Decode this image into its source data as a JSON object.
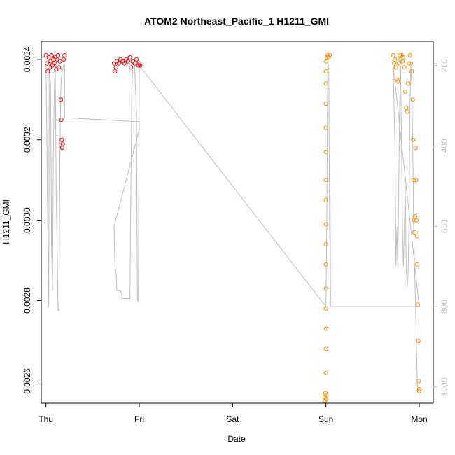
{
  "chart_data": {
    "type": "scatter",
    "title": "ATOM2 Northeast_Pacific_1 H1211_GMI",
    "xlabel": "Date",
    "ylabel": "H1211_GMI",
    "x_ticks": [
      "Thu",
      "Fri",
      "Sat",
      "Sun",
      "Mon"
    ],
    "x_range_days": [
      -0.05,
      4.15
    ],
    "ylim": [
      0.002545,
      0.003445
    ],
    "y_ticks": [
      {
        "value": 0.0026,
        "label": "0.0026"
      },
      {
        "value": 0.0028,
        "label": "0.0028"
      },
      {
        "value": 0.003,
        "label": "0.0030"
      },
      {
        "value": 0.0032,
        "label": "0.0032"
      },
      {
        "value": 0.0034,
        "label": "0.0034"
      }
    ],
    "y2lim": [
      1040,
      140
    ],
    "y2_ticks": [
      {
        "value": 200,
        "label": "200"
      },
      {
        "value": 400,
        "label": "400"
      },
      {
        "value": 600,
        "label": "600"
      },
      {
        "value": 800,
        "label": "800"
      },
      {
        "value": 1000,
        "label": "1000"
      }
    ],
    "colors": {
      "red": "#ff0000",
      "orange": "#ff8c00",
      "line": "#bebebe"
    },
    "series": [
      {
        "color": "red",
        "marker": "circle-open",
        "points": [
          [
            0.0,
            0.00341
          ],
          [
            0.01,
            0.00339
          ],
          [
            0.02,
            0.00337
          ],
          [
            0.03,
            0.003405
          ],
          [
            0.04,
            0.00338
          ],
          [
            0.05,
            0.003395
          ],
          [
            0.06,
            0.00341
          ],
          [
            0.07,
            0.003385
          ],
          [
            0.08,
            0.0034
          ],
          [
            0.09,
            0.00339
          ],
          [
            0.1,
            0.003405
          ],
          [
            0.11,
            0.003375
          ],
          [
            0.12,
            0.0034
          ],
          [
            0.13,
            0.00341
          ],
          [
            0.14,
            0.00338
          ],
          [
            0.15,
            0.003395
          ],
          [
            0.16,
            0.0033
          ],
          [
            0.165,
            0.00325
          ],
          [
            0.17,
            0.0032
          ],
          [
            0.175,
            0.00318
          ],
          [
            0.18,
            0.00319
          ],
          [
            0.19,
            0.0034
          ],
          [
            0.2,
            0.00341
          ],
          [
            0.73,
            0.00339
          ],
          [
            0.74,
            0.00337
          ],
          [
            0.75,
            0.00338
          ],
          [
            0.76,
            0.003395
          ],
          [
            0.78,
            0.00339
          ],
          [
            0.8,
            0.0034
          ],
          [
            0.82,
            0.003395
          ],
          [
            0.84,
            0.00339
          ],
          [
            0.86,
            0.0034
          ],
          [
            0.88,
            0.003395
          ],
          [
            0.9,
            0.003405
          ],
          [
            0.91,
            0.00338
          ],
          [
            0.93,
            0.003395
          ],
          [
            0.95,
            0.00339
          ],
          [
            0.97,
            0.0034
          ],
          [
            0.99,
            0.003385
          ],
          [
            1.0,
            0.00339
          ],
          [
            1.01,
            0.003385
          ]
        ]
      },
      {
        "color": "orange",
        "marker": "circle-open",
        "points": [
          [
            2.99,
            0.00255
          ],
          [
            2.99,
            0.00256
          ],
          [
            2.995,
            0.00257
          ],
          [
            3.0,
            0.002555
          ],
          [
            3.005,
            0.002565
          ],
          [
            3.0,
            0.00262
          ],
          [
            3.0,
            0.00268
          ],
          [
            3.0,
            0.00273
          ],
          [
            3.0,
            0.00278
          ],
          [
            3.0,
            0.00283
          ],
          [
            3.0,
            0.00289
          ],
          [
            3.0,
            0.00294
          ],
          [
            3.0,
            0.00299
          ],
          [
            3.0,
            0.00305
          ],
          [
            3.0,
            0.0031
          ],
          [
            3.0,
            0.00317
          ],
          [
            3.0,
            0.00323
          ],
          [
            3.0,
            0.00329
          ],
          [
            3.0,
            0.00334
          ],
          [
            3.0,
            0.00337
          ],
          [
            3.005,
            0.003395
          ],
          [
            3.01,
            0.003405
          ],
          [
            3.02,
            0.00341
          ],
          [
            3.03,
            0.003405
          ],
          [
            3.04,
            0.00341
          ],
          [
            3.72,
            0.00341
          ],
          [
            3.73,
            0.00339
          ],
          [
            3.74,
            0.0034
          ],
          [
            3.75,
            0.00338
          ],
          [
            3.76,
            0.00335
          ],
          [
            3.77,
            0.003345
          ],
          [
            3.78,
            0.00339
          ],
          [
            3.79,
            0.00341
          ],
          [
            3.8,
            0.0034
          ],
          [
            3.81,
            0.00341
          ],
          [
            3.82,
            0.003395
          ],
          [
            3.83,
            0.003405
          ],
          [
            3.84,
            0.00338
          ],
          [
            3.85,
            0.00332
          ],
          [
            3.86,
            0.00328
          ],
          [
            3.87,
            0.00327
          ],
          [
            3.88,
            0.00334
          ],
          [
            3.89,
            0.00339
          ],
          [
            3.9,
            0.00341
          ],
          [
            3.91,
            0.00339
          ],
          [
            3.92,
            0.00337
          ],
          [
            3.93,
            0.0033
          ],
          [
            3.935,
            0.0032
          ],
          [
            3.94,
            0.0031
          ],
          [
            3.945,
            0.003
          ],
          [
            3.95,
            0.00297
          ],
          [
            3.955,
            0.00301
          ],
          [
            3.96,
            0.00318
          ],
          [
            3.965,
            0.0031
          ],
          [
            3.97,
            0.003
          ],
          [
            3.975,
            0.00296
          ],
          [
            3.98,
            0.00289
          ],
          [
            3.985,
            0.00279
          ],
          [
            3.99,
            0.0027
          ],
          [
            3.995,
            0.0026
          ],
          [
            4.0,
            0.00258
          ],
          [
            4.0,
            0.002575
          ]
        ]
      }
    ],
    "line_series": {
      "color": "line",
      "axis": "right",
      "points": [
        [
          0.0,
          200
        ],
        [
          0.01,
          390
        ],
        [
          0.02,
          600
        ],
        [
          0.03,
          800
        ],
        [
          0.035,
          200
        ],
        [
          0.05,
          250
        ],
        [
          0.06,
          650
        ],
        [
          0.07,
          760
        ],
        [
          0.08,
          400
        ],
        [
          0.09,
          250
        ],
        [
          0.1,
          200
        ],
        [
          0.11,
          520
        ],
        [
          0.12,
          650
        ],
        [
          0.13,
          810
        ],
        [
          0.14,
          810
        ],
        [
          0.15,
          400
        ],
        [
          0.16,
          250
        ],
        [
          0.17,
          220
        ],
        [
          0.18,
          210
        ],
        [
          0.19,
          200
        ],
        [
          0.2,
          200
        ],
        [
          0.2,
          330
        ],
        [
          1.0,
          340
        ],
        [
          1.0,
          360
        ],
        [
          0.73,
          600
        ],
        [
          0.74,
          700
        ],
        [
          0.75,
          710
        ],
        [
          0.76,
          760
        ],
        [
          0.8,
          760
        ],
        [
          0.82,
          780
        ],
        [
          0.83,
          780
        ],
        [
          0.85,
          780
        ],
        [
          0.88,
          780
        ],
        [
          0.9,
          780
        ],
        [
          0.91,
          500
        ],
        [
          0.92,
          270
        ],
        [
          0.93,
          200
        ],
        [
          0.95,
          200
        ],
        [
          0.97,
          320
        ],
        [
          0.98,
          780
        ],
        [
          0.99,
          790
        ],
        [
          1.0,
          200
        ],
        [
          3.0,
          800
        ],
        [
          3.01,
          560
        ],
        [
          3.02,
          200
        ],
        [
          3.03,
          200
        ],
        [
          3.035,
          390
        ],
        [
          3.04,
          630
        ],
        [
          3.045,
          520
        ],
        [
          3.05,
          800
        ],
        [
          3.1,
          800
        ],
        [
          3.5,
          800
        ],
        [
          3.9,
          800
        ],
        [
          4.0,
          800
        ],
        [
          3.72,
          200
        ],
        [
          3.73,
          300
        ],
        [
          3.74,
          400
        ],
        [
          3.75,
          700
        ],
        [
          3.76,
          600
        ],
        [
          3.77,
          700
        ],
        [
          3.78,
          500
        ],
        [
          3.79,
          300
        ],
        [
          3.8,
          200
        ],
        [
          3.81,
          400
        ],
        [
          3.82,
          600
        ],
        [
          3.83,
          700
        ],
        [
          3.84,
          600
        ],
        [
          3.85,
          500
        ],
        [
          3.86,
          700
        ],
        [
          3.87,
          750
        ],
        [
          3.88,
          720
        ],
        [
          3.89,
          600
        ],
        [
          3.9,
          300
        ],
        [
          3.91,
          200
        ],
        [
          3.92,
          250
        ],
        [
          3.93,
          400
        ],
        [
          3.94,
          600
        ],
        [
          3.95,
          700
        ],
        [
          3.96,
          800
        ],
        [
          3.97,
          900
        ],
        [
          3.98,
          1000
        ],
        [
          3.99,
          1000
        ],
        [
          4.0,
          1000
        ]
      ]
    }
  }
}
